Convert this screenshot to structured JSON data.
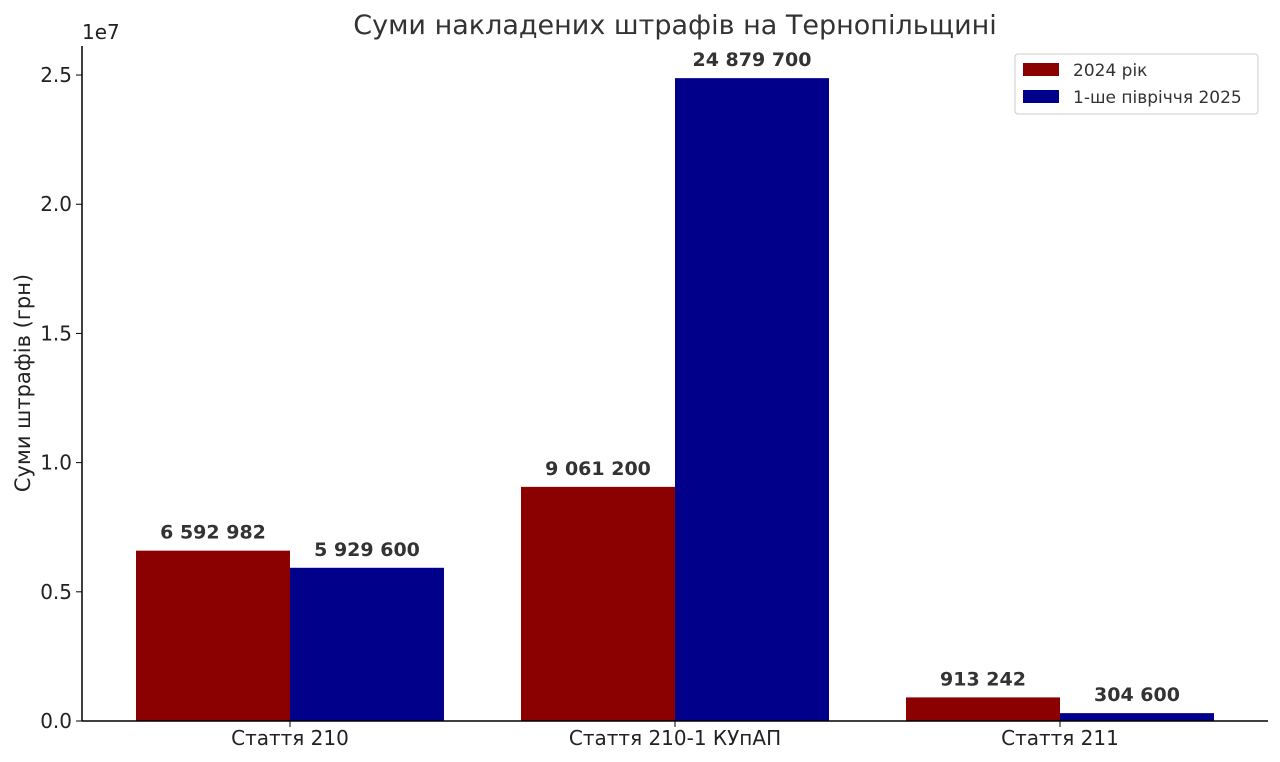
{
  "chart_data": {
    "type": "bar",
    "title": "Суми накладених штрафів на Тернопільщині",
    "xlabel": "",
    "ylabel": "Суми штрафів (грн)",
    "y_multiplier_label": "1e7",
    "categories": [
      "Стаття 210",
      "Стаття 210-1 КУпАП",
      "Стаття 211"
    ],
    "series": [
      {
        "name": "2024 рік",
        "color": "#8b0000",
        "values": [
          6592982,
          9061200,
          913242
        ],
        "labels": [
          "6 592 982",
          "9 061 200",
          "913 242"
        ]
      },
      {
        "name": "1-ше півріччя 2025",
        "color": "#00008b",
        "values": [
          5929600,
          24879700,
          304600
        ],
        "labels": [
          "5 929 600",
          "24 879 700",
          "304 600"
        ]
      }
    ],
    "ylim": [
      0,
      26123685
    ],
    "y_ticks": [
      0,
      5000000,
      10000000,
      15000000,
      20000000,
      25000000
    ],
    "y_tick_labels": [
      "0.0",
      "0.5",
      "1.0",
      "1.5",
      "2.0",
      "2.5"
    ],
    "grid": false,
    "legend_position": "top-right"
  }
}
